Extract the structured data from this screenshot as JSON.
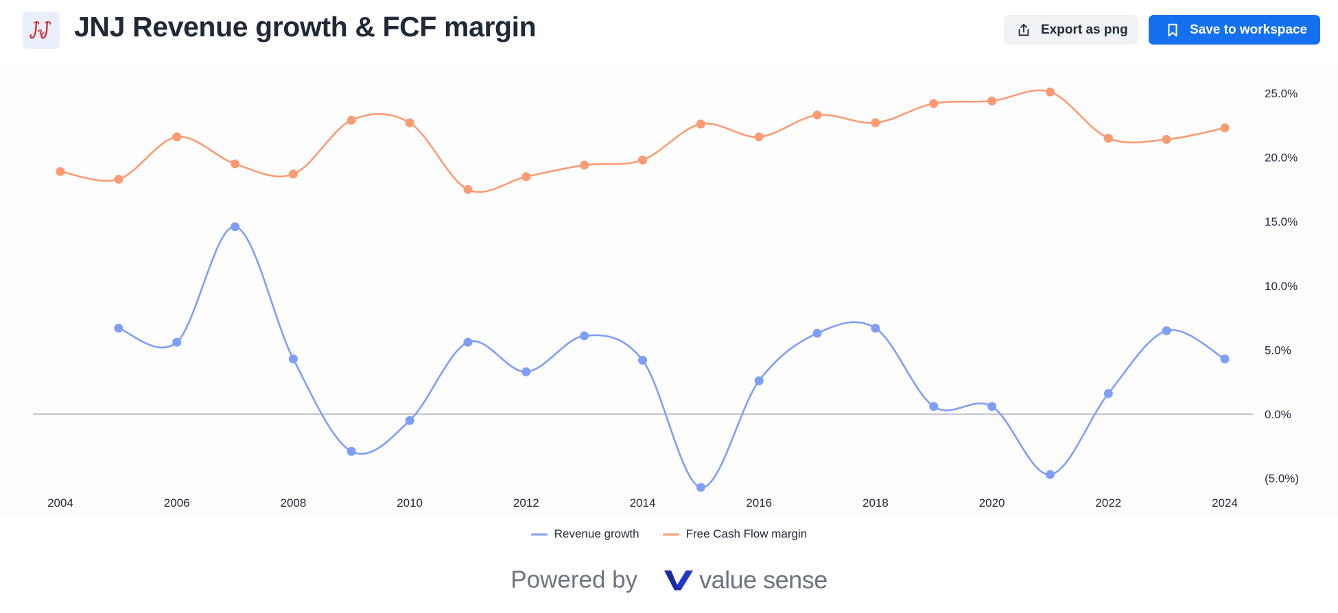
{
  "header": {
    "title": "JNJ Revenue growth & FCF margin",
    "logo_icon": "jnj-logo",
    "export_label": "Export as png",
    "save_label": "Save to workspace"
  },
  "footer": {
    "powered_by": "Powered by",
    "brand": "value sense"
  },
  "colors": {
    "revenue_growth": "#7e9ef7",
    "fcf_margin": "#fb9b73",
    "primary_button": "#1570ef"
  },
  "chart_data": {
    "type": "line",
    "title": "JNJ Revenue growth & FCF margin",
    "x": [
      2004,
      2005,
      2006,
      2007,
      2008,
      2009,
      2010,
      2011,
      2012,
      2013,
      2014,
      2015,
      2016,
      2017,
      2018,
      2019,
      2020,
      2021,
      2022,
      2023,
      2024
    ],
    "x_ticks": [
      "2004",
      "2006",
      "2008",
      "2010",
      "2012",
      "2014",
      "2016",
      "2018",
      "2020",
      "2022",
      "2024"
    ],
    "y_ticks": [
      "25.0%",
      "20.0%",
      "15.0%",
      "10.0%",
      "5.0%",
      "0.0%",
      "(5.0%)"
    ],
    "ylim": [
      -6,
      26.5
    ],
    "y_axis_position": "right",
    "zero_line": true,
    "legend_position": "bottom-center",
    "series": [
      {
        "name": "Revenue growth",
        "color": "#7e9ef7",
        "values": [
          null,
          6.7,
          5.6,
          14.6,
          4.3,
          -2.9,
          -0.5,
          5.6,
          3.3,
          6.1,
          4.2,
          -5.7,
          2.6,
          6.3,
          6.7,
          0.6,
          0.6,
          -4.7,
          1.6,
          6.5,
          4.3
        ]
      },
      {
        "name": "Free Cash Flow margin",
        "color": "#fb9b73",
        "values": [
          18.9,
          18.3,
          21.6,
          19.5,
          18.7,
          22.9,
          22.7,
          17.5,
          18.5,
          19.4,
          19.8,
          22.6,
          21.6,
          23.3,
          22.7,
          24.2,
          24.4,
          25.1,
          21.5,
          21.4,
          22.3
        ]
      }
    ]
  }
}
